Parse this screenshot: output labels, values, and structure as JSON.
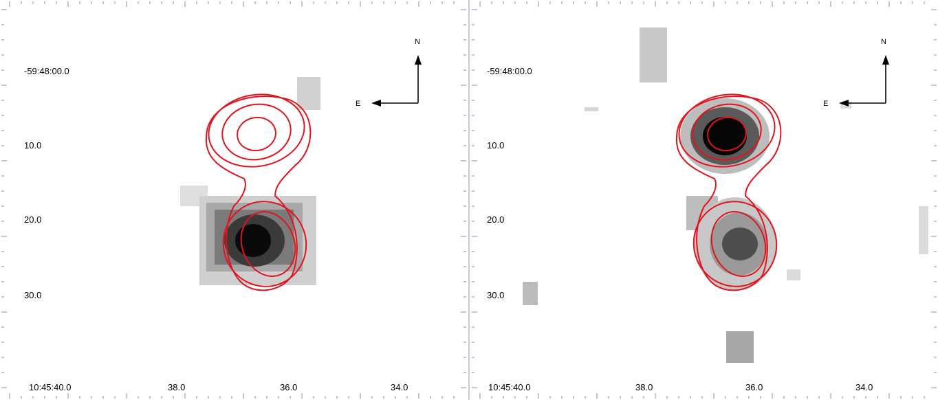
{
  "panels": [
    {
      "id": "left",
      "dec_labels": [
        "-59:48:00.0",
        "10.0",
        "20.0",
        "30.0"
      ],
      "ra_labels": [
        "10:45:40.0",
        "38.0",
        "36.0",
        "34.0"
      ],
      "compass": {
        "north": "N",
        "east": "E"
      }
    },
    {
      "id": "right",
      "dec_labels": [
        "-59:48:00.0",
        "10.0",
        "20.0",
        "30.0"
      ],
      "ra_labels": [
        "10:45:40.0",
        "38.0",
        "36.0",
        "34.0"
      ],
      "compass": {
        "north": "N",
        "east": "E"
      }
    }
  ],
  "colors": {
    "contour": "#e0141c",
    "axis_ticks": "#8a8aa8",
    "background": "#ffffff"
  }
}
